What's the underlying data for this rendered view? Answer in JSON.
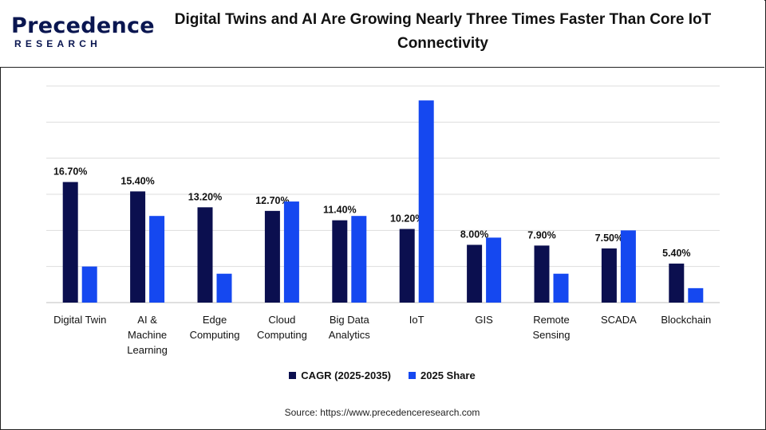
{
  "header": {
    "logo_main": "Precedence",
    "logo_sub": "RESEARCH",
    "title": "Digital Twins and AI Are Growing Nearly Three Times Faster Than Core IoT Connectivity"
  },
  "chart_data": {
    "type": "bar",
    "title": "Digital Twins and AI Are Growing Nearly Three Times Faster Than Core IoT Connectivity",
    "xlabel": "",
    "ylabel": "",
    "grid": true,
    "legend_position": "bottom",
    "categories": [
      [
        "Digital Twin"
      ],
      [
        "AI &",
        "Machine",
        "Learning"
      ],
      [
        "Edge",
        "Computing"
      ],
      [
        "Cloud",
        "Computing"
      ],
      [
        "Big Data",
        "Analytics"
      ],
      [
        "IoT"
      ],
      [
        "GIS"
      ],
      [
        "Remote",
        "Sensing"
      ],
      [
        "SCADA"
      ],
      [
        "Blockchain"
      ]
    ],
    "series": [
      {
        "name": "CAGR (2025-2035)",
        "color": "#0b0f4f",
        "values": [
          16.7,
          15.4,
          13.2,
          12.7,
          11.4,
          10.2,
          8.0,
          7.9,
          7.5,
          5.4
        ],
        "labels": [
          "16.70%",
          "15.40%",
          "13.20%",
          "12.70%",
          "11.40%",
          "10.20%",
          "8.00%",
          "7.90%",
          "7.50%",
          "5.40%"
        ]
      },
      {
        "name": "2025 Share",
        "color": "#1548f0",
        "values": [
          5.0,
          12.0,
          4.0,
          14.0,
          12.0,
          28.0,
          9.0,
          4.0,
          10.0,
          2.0
        ]
      }
    ],
    "ylim": [
      0,
      30
    ]
  },
  "source": "Source: https://www.precedenceresearch.com"
}
